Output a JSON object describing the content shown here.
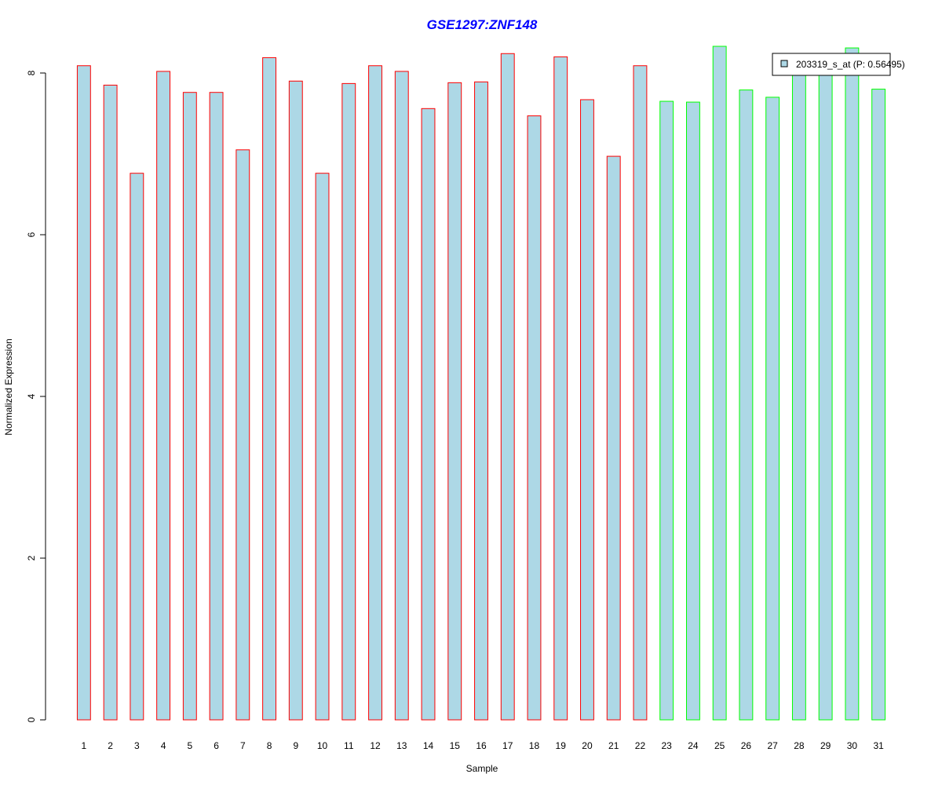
{
  "chart_data": {
    "type": "bar",
    "title": "GSE1297:ZNF148",
    "xlabel": "Sample",
    "ylabel": "Normalized Expression",
    "categories": [
      "1",
      "2",
      "3",
      "4",
      "5",
      "6",
      "7",
      "8",
      "9",
      "10",
      "11",
      "12",
      "13",
      "14",
      "15",
      "16",
      "17",
      "18",
      "19",
      "20",
      "21",
      "22",
      "23",
      "24",
      "25",
      "26",
      "27",
      "28",
      "29",
      "30",
      "31"
    ],
    "values": [
      8.09,
      7.85,
      6.76,
      8.02,
      7.76,
      7.76,
      7.05,
      8.19,
      7.9,
      6.76,
      7.87,
      8.09,
      8.02,
      7.56,
      7.88,
      7.89,
      8.24,
      7.47,
      8.2,
      7.67,
      6.97,
      8.09,
      7.65,
      7.64,
      8.33,
      7.79,
      7.7,
      8.09,
      8.1,
      8.31,
      7.8
    ],
    "group_edge_colors": [
      "#ff0000",
      "#ff0000",
      "#ff0000",
      "#ff0000",
      "#ff0000",
      "#ff0000",
      "#ff0000",
      "#ff0000",
      "#ff0000",
      "#ff0000",
      "#ff0000",
      "#ff0000",
      "#ff0000",
      "#ff0000",
      "#ff0000",
      "#ff0000",
      "#ff0000",
      "#ff0000",
      "#ff0000",
      "#ff0000",
      "#ff0000",
      "#ff0000",
      "#00ff00",
      "#00ff00",
      "#00ff00",
      "#00ff00",
      "#00ff00",
      "#00ff00",
      "#00ff00",
      "#00ff00",
      "#00ff00"
    ],
    "bar_fill": "#add8e6",
    "title_color": "#0000ff",
    "ylim": [
      0,
      8.33
    ],
    "yticks": [
      0,
      2,
      4,
      6,
      8
    ],
    "grid": false,
    "legend": {
      "placement": "top-right",
      "entries": [
        {
          "label": "203319_s_at (P: 0.56495)",
          "color": "#add8e6"
        }
      ]
    }
  }
}
